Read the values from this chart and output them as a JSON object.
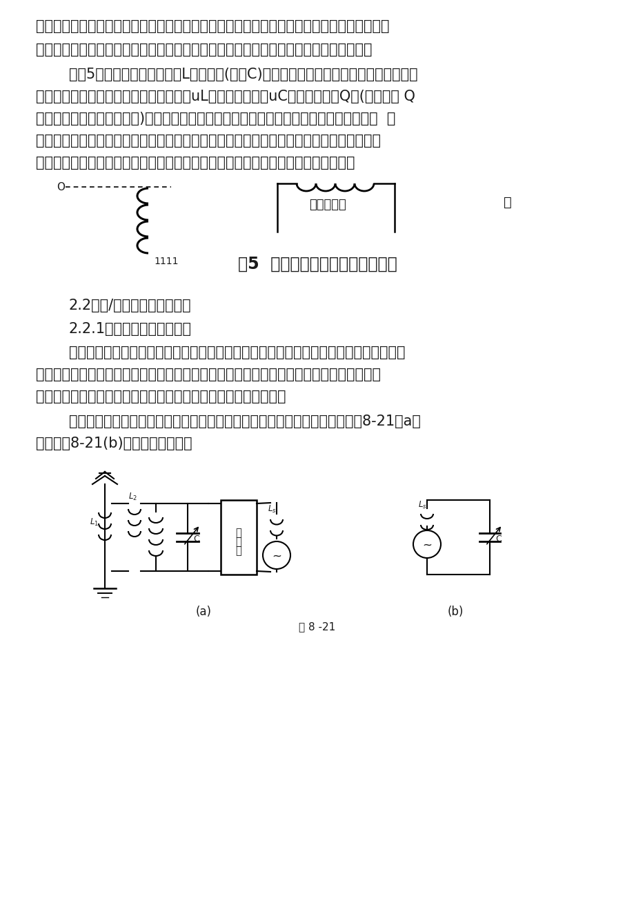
{
  "bg_color": "#ffffff",
  "text_color": "#1a1a1a",
  "para1": "交流耐压试验，常需要很庞大的试验设备，而现场往往不具备这些条件。对于大型变压器等被",
  "para2": "试品，在交流耐压试验时的等值阻抗呈容性，被试品的电容量越大试验回路的电流越大。",
  "para3": "如图5所示，利用可调电抗器L与被试品(电容C)构成串联电路，调整电抗器电感的大小，",
  "para4": "使之发生串联谐振。谐振时电感上的电压uL和电容上的电压uC是电源电压的Q倍(品质因数 Q",
  "para5": "一般可达到几十至一百左右)。可见，电气试验中可以采用串联谐振法对电气设备进行耐压  试",
  "para6": "验。试验电抗器电感和被试品的电容发生谐振时，会产生高电压和大电流，而电源所需提供",
  "para7": "的仅仅是系统中有功消耗的部分，从而使得试验设备轻量化，十分适宜于现场试验。",
  "fig5_label": "图5  串联谐振交流耐压试验原理图",
  "label_ketiao": "可调电抗器",
  "label_bei": "被",
  "label_1111": "1111",
  "sec22": "2.2、串/并联谐振电路的应用",
  "sec221": "2.2.1、串联谐振电路的应用",
  "body1": "利用串联谐振产生工频高电压，应用在高电压技术中，为变压器等电力设备做耐压试验，",
  "body2": "可以有效的发现设备中危险的集中性缺陷，是检验电气设备绝缘强度的最有效和最直接的方",
  "body3": "法。应用在无线电工程中，常常利用串联谐振以获得较高的电压。",
  "body4": "在收音机中，常利用串联谐振电路来选择电台信号，这个过程叫做调谐，如图8-21（a）",
  "body5": "所示。图8-21(b)是它的等效电路。",
  "fig821_label": "图 8 -21",
  "label_a": "(a)",
  "label_b": "(b)",
  "label_jieshoji": "接\n收\n机",
  "label_L1": "L₁",
  "label_L2": "L₂",
  "label_Ls": "L s",
  "label_C": "C",
  "label_tilde": "~"
}
